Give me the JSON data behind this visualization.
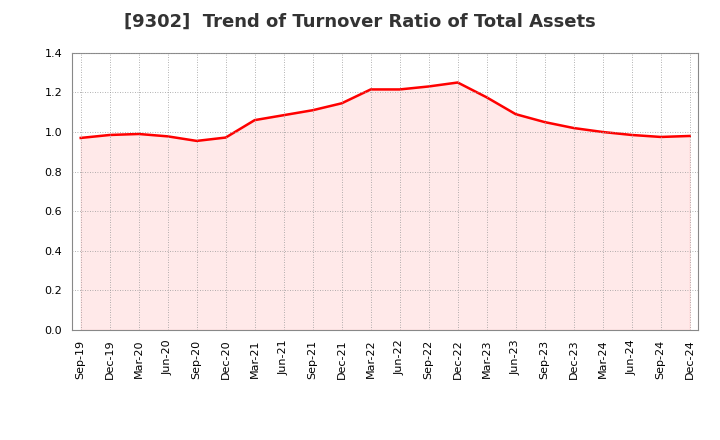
{
  "title": "[9302]  Trend of Turnover Ratio of Total Assets",
  "x_labels": [
    "Sep-19",
    "Dec-19",
    "Mar-20",
    "Jun-20",
    "Sep-20",
    "Dec-20",
    "Mar-21",
    "Jun-21",
    "Sep-21",
    "Dec-21",
    "Mar-22",
    "Jun-22",
    "Sep-22",
    "Dec-22",
    "Mar-23",
    "Jun-23",
    "Sep-23",
    "Dec-23",
    "Mar-24",
    "Jun-24",
    "Sep-24",
    "Dec-24"
  ],
  "y_values": [
    0.97,
    0.985,
    0.99,
    0.978,
    0.955,
    0.972,
    1.06,
    1.085,
    1.11,
    1.145,
    1.215,
    1.215,
    1.23,
    1.25,
    1.175,
    1.09,
    1.05,
    1.02,
    1.0,
    0.985,
    0.975,
    0.98
  ],
  "line_color": "#ff0000",
  "line_width": 1.8,
  "fill_color": "#ffaaaa",
  "fill_alpha": 0.25,
  "ylim": [
    0.0,
    1.4
  ],
  "yticks": [
    0.0,
    0.2,
    0.4,
    0.6,
    0.8,
    1.0,
    1.2,
    1.4
  ],
  "grid_color": "#999999",
  "grid_style": "dotted",
  "bg_color": "#ffffff",
  "title_fontsize": 13,
  "tick_fontsize": 8,
  "title_color": "#333333"
}
